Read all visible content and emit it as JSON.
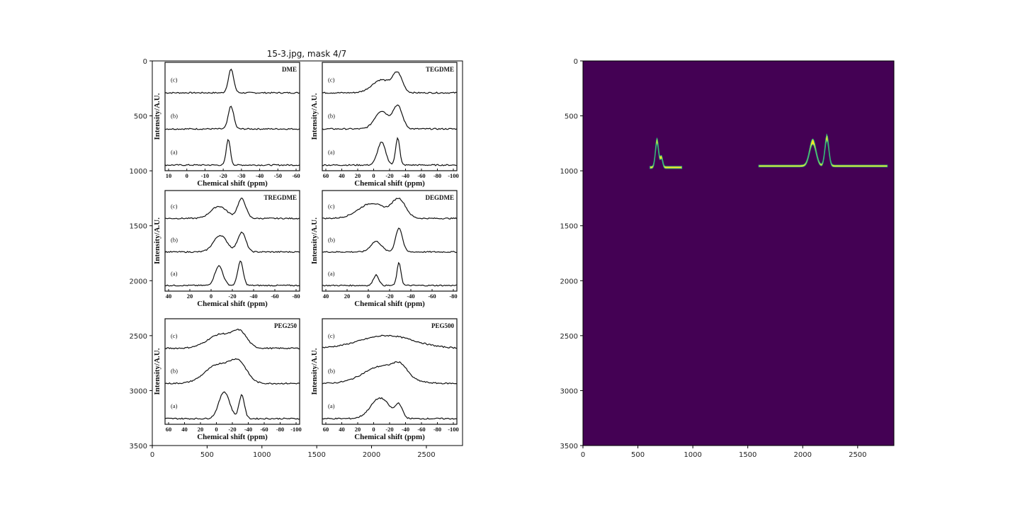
{
  "figure_title": "15-3.jpg, mask 4/7",
  "colors": {
    "mask_background": "#440154",
    "mask_fill": "#fde725",
    "mask_edge": "#35b779",
    "trace": "#111111"
  },
  "chart_data": [
    {
      "type": "image",
      "name": "left-axes",
      "xlim": [
        0,
        2830
      ],
      "ylim": [
        3500,
        0
      ],
      "xticks": [
        0,
        500,
        1000,
        1500,
        2000,
        2500
      ],
      "yticks": [
        0,
        500,
        1000,
        1500,
        2000,
        2500,
        3000,
        3500
      ],
      "panels": [
        {
          "label": "DME",
          "ylabel": "Intensity/A.U.",
          "xlabel": "Chemical shift (ppm)",
          "xticks": [
            "10",
            "0",
            "-10",
            "-20",
            "-30",
            "-40",
            "-50",
            "-60"
          ],
          "traces": [
            "(c)",
            "(b)",
            "(a)"
          ]
        },
        {
          "label": "TEGDME",
          "ylabel": "Intensity/A.U.",
          "xlabel": "Chemical shift (ppm)",
          "xticks": [
            "60",
            "40",
            "20",
            "0",
            "-20",
            "-40",
            "-60",
            "-80",
            "-100"
          ],
          "traces": [
            "(c)",
            "(b)",
            "(a)"
          ]
        },
        {
          "label": "TREGDME",
          "ylabel": "Intensity/A.U.",
          "xlabel": "Chemical shift (ppm)",
          "xticks": [
            "40",
            "20",
            "0",
            "-20",
            "-40",
            "-60",
            "-80"
          ],
          "traces": [
            "(c)",
            "(b)",
            "(a)"
          ]
        },
        {
          "label": "DEGDME",
          "ylabel": "Intensity/A.U.",
          "xlabel": "Chemical shift (ppm)",
          "xticks": [
            "40",
            "20",
            "0",
            "-20",
            "-40",
            "-60",
            "-80"
          ],
          "traces": [
            "(c)",
            "(b)",
            "(a)"
          ]
        },
        {
          "label": "PEG250",
          "ylabel": "Intensity/A.U.",
          "xlabel": "Chemical shift (ppm)",
          "xticks": [
            "60",
            "40",
            "20",
            "0",
            "-20",
            "-40",
            "-60",
            "-80",
            "-100"
          ],
          "traces": [
            "(c)",
            "(b)",
            "(a)"
          ]
        },
        {
          "label": "PEG500",
          "ylabel": "Intensity/A.U.",
          "xlabel": "Chemical shift (ppm)",
          "xticks": [
            "60",
            "40",
            "20",
            "0",
            "-20",
            "-40",
            "-60",
            "-80",
            "-100"
          ],
          "traces": [
            "(c)",
            "(b)",
            "(a)"
          ]
        }
      ]
    },
    {
      "type": "heatmap",
      "name": "right-axes-mask",
      "xlim": [
        0,
        2830
      ],
      "ylim": [
        3500,
        0
      ],
      "xticks": [
        0,
        500,
        1000,
        1500,
        2000,
        2500
      ],
      "yticks": [
        0,
        500,
        1000,
        1500,
        2000,
        2500,
        3000,
        3500
      ],
      "mask_regions": [
        {
          "x": [
            610,
            900
          ],
          "y": [
            690,
            960
          ]
        },
        {
          "x": [
            1600,
            2770
          ],
          "y": [
            670,
            950
          ]
        }
      ]
    }
  ]
}
